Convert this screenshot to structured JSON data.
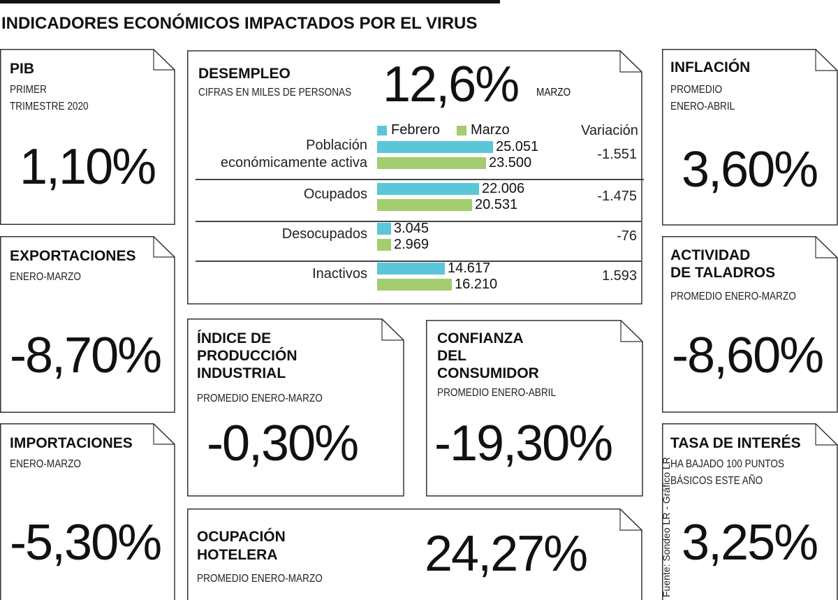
{
  "title": "INDICADORES ECONÓMICOS IMPACTADOS POR EL VIRUS",
  "source": "Fuente: Sondeo LR - Gráfico LR",
  "cards": {
    "pib": {
      "name": "PIB",
      "sub1": "PRIMER",
      "sub2": "TRIMESTRE 2020",
      "value": "1,10%"
    },
    "exportaciones": {
      "name": "EXPORTACIONES",
      "sub1": "ENERO-MARZO",
      "value": "-8,70%"
    },
    "importaciones": {
      "name": "IMPORTACIONES",
      "sub1": "ENERO-MARZO",
      "value": "-5,30%"
    },
    "produccion": {
      "name1": "ÍNDICE DE",
      "name2": "PRODUCCIÓN",
      "name3": "INDUSTRIAL",
      "sub1": "PROMEDIO ENERO-MARZO",
      "value": "-0,30%"
    },
    "confianza": {
      "name1": "CONFIANZA",
      "name2": "DEL",
      "name3": "CONSUMIDOR",
      "sub1": "PROMEDIO ENERO-ABRIL",
      "value": "-19,30%"
    },
    "hotelera": {
      "name1": "OCUPACIÓN",
      "name2": "HOTELERA",
      "sub1": "PROMEDIO ENERO-MARZO",
      "value": "24,27%"
    },
    "inflacion": {
      "name": "INFLACIÓN",
      "sub1": "PROMEDIO",
      "sub2": "ENERO-ABRIL",
      "value": "3,60%"
    },
    "taladros": {
      "name1": "ACTIVIDAD",
      "name2": "DE TALADROS",
      "sub1": "PROMEDIO ENERO-MARZO",
      "value": "-8,60%"
    },
    "interes": {
      "name": "TASA DE INTERÉS",
      "sub1": "HA BAJADO 100 PUNTOS",
      "sub2": "BÁSICOS ESTE AÑO",
      "value": "3,25%"
    }
  },
  "desempleo": {
    "name": "DESEMPLEO",
    "sub": "CIFRAS EN MILES DE PERSONAS",
    "value": "12,6%",
    "period": "MARZO",
    "variation_header": "Variación"
  },
  "chart_data": {
    "type": "bar",
    "orientation": "horizontal",
    "title": "",
    "categories": [
      "Población económicamente activa",
      "Ocupados",
      "Desocupados",
      "Inactivos"
    ],
    "category_lines": [
      [
        "Población",
        "económicamente activa"
      ],
      [
        "Ocupados"
      ],
      [
        "Desocupados"
      ],
      [
        "Inactivos"
      ]
    ],
    "series": [
      {
        "name": "Febrero",
        "color": "#5bc6d9",
        "values": [
          25051,
          22006,
          3045,
          14617
        ],
        "labels": [
          "25.051",
          "22.006",
          "3.045",
          "14.617"
        ]
      },
      {
        "name": "Marzo",
        "color": "#a3cd6f",
        "values": [
          23500,
          20531,
          2969,
          16210
        ],
        "labels": [
          "23.500",
          "20.531",
          "2.969",
          "16.210"
        ]
      }
    ],
    "variation": [
      "-1.551",
      "-1.475",
      "-76",
      "1.593"
    ],
    "legend": "top",
    "grid": false,
    "xlim": [
      0,
      25051
    ]
  }
}
